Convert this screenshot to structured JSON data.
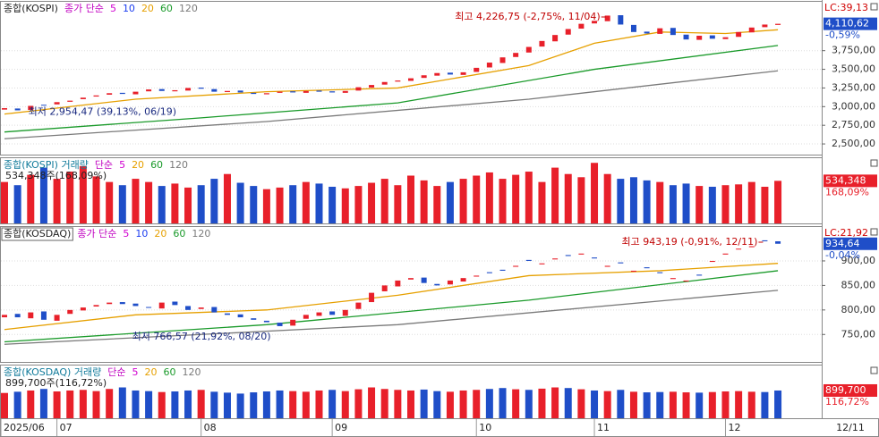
{
  "chart_data": [
    {
      "type": "candlestick",
      "title": "종합(KOSPI)",
      "indicator": "종가 단순",
      "moving_averages": [
        {
          "name": "5",
          "color": "#d000d0"
        },
        {
          "name": "10",
          "color": "#1a3cf0"
        },
        {
          "name": "20",
          "color": "#e6a000",
          "x": [
            0,
            10,
            20,
            30,
            40,
            45,
            50,
            55,
            59
          ],
          "values": [
            2900,
            3100,
            3200,
            3250,
            3550,
            3850,
            4000,
            3980,
            4030
          ]
        },
        {
          "name": "60",
          "color": "#1a9a2a",
          "x": [
            0,
            15,
            30,
            45,
            59
          ],
          "values": [
            2660,
            2850,
            3050,
            3500,
            3820
          ]
        },
        {
          "name": "120",
          "color": "#7a7a7a",
          "x": [
            0,
            20,
            40,
            59
          ],
          "values": [
            2570,
            2800,
            3100,
            3480
          ]
        }
      ],
      "up_color": "#e8202a",
      "down_color": "#1f4ec8",
      "open": [
        2960,
        2975,
        2955,
        3025,
        3030,
        3065,
        3100,
        3135,
        3160,
        3185,
        3165,
        3205,
        3235,
        3205,
        3215,
        3255,
        3235,
        3195,
        3215,
        3185,
        3165,
        3185,
        3205,
        3185,
        3215,
        3205,
        3185,
        3215,
        3255,
        3295,
        3335,
        3345,
        3385,
        3415,
        3455,
        3425,
        3465,
        3525,
        3585,
        3665,
        3725,
        3805,
        3875,
        3965,
        4045,
        4115,
        4145,
        4225,
        4095,
        4005,
        3975,
        4055,
        3965,
        3895,
        3955,
        3905,
        3935,
        3995,
        4065,
        4095
      ],
      "close": [
        2980,
        2950,
        3010,
        3020,
        3060,
        3080,
        3120,
        3150,
        3180,
        3170,
        3200,
        3230,
        3210,
        3220,
        3250,
        3240,
        3200,
        3210,
        3190,
        3170,
        3180,
        3200,
        3190,
        3210,
        3200,
        3190,
        3210,
        3260,
        3290,
        3330,
        3350,
        3380,
        3420,
        3450,
        3430,
        3460,
        3520,
        3590,
        3660,
        3720,
        3800,
        3880,
        3960,
        4040,
        4110,
        4150,
        4220,
        4100,
        4000,
        3980,
        4050,
        3960,
        3900,
        3950,
        3910,
        3930,
        4000,
        4060,
        4100,
        4110
      ],
      "ylim": [
        2357,
        4417
      ],
      "yticks": [
        {
          "value": 2500,
          "label": "2,500,00"
        },
        {
          "value": 2750,
          "label": "2,750,00"
        },
        {
          "value": 3000,
          "label": "3,000,00"
        },
        {
          "value": 3250,
          "label": "3,250,00"
        },
        {
          "value": 3500,
          "label": "3,500,00"
        },
        {
          "value": 3750,
          "label": "3,750,00"
        }
      ],
      "annotations": [
        "최고 4,226,75 (-2,75%, 11/04)",
        "최저 2,954,47 (39,13%, 06/19)"
      ],
      "lc_label": "LC:39,13",
      "last_value_label": "4,110,62",
      "last_change_label": "-0,59%"
    },
    {
      "type": "volume",
      "title": "종합(KOSPI) 거래량",
      "indicator": "단순",
      "ma_labels": [
        "5",
        "20",
        "60",
        "120"
      ],
      "summary": "534,348주(168,09%)",
      "values": [
        520000,
        480000,
        610000,
        700000,
        560000,
        650000,
        720000,
        590000,
        520000,
        480000,
        560000,
        520000,
        470000,
        500000,
        450000,
        480000,
        560000,
        620000,
        510000,
        470000,
        430000,
        450000,
        480000,
        520000,
        500000,
        460000,
        440000,
        470000,
        510000,
        560000,
        480000,
        600000,
        540000,
        470000,
        520000,
        560000,
        600000,
        640000,
        560000,
        610000,
        650000,
        520000,
        700000,
        620000,
        580000,
        760000,
        620000,
        560000,
        580000,
        540000,
        520000,
        480000,
        500000,
        470000,
        460000,
        480000,
        490000,
        520000,
        460000,
        534348
      ],
      "ylim": [
        0,
        830000
      ],
      "last_value_label": "534,348",
      "last_change_label": "168,09%"
    },
    {
      "type": "candlestick",
      "title": "종합(KOSDAQ)",
      "indicator": "종가 단순",
      "moving_averages": [
        {
          "name": "5",
          "color": "#d000d0"
        },
        {
          "name": "10",
          "color": "#1a3cf0"
        },
        {
          "name": "20",
          "color": "#e6a000",
          "x": [
            0,
            10,
            20,
            30,
            40,
            50,
            59
          ],
          "values": [
            760,
            790,
            800,
            830,
            870,
            880,
            895
          ]
        },
        {
          "name": "60",
          "color": "#1a9a2a",
          "x": [
            0,
            20,
            40,
            59
          ],
          "values": [
            735,
            770,
            820,
            880
          ]
        },
        {
          "name": "120",
          "color": "#7a7a7a",
          "x": [
            0,
            30,
            59
          ],
          "values": [
            730,
            770,
            840
          ]
        }
      ],
      "up_color": "#e8202a",
      "down_color": "#1f4ec8",
      "open": [
        785,
        792,
        783,
        797,
        778,
        792,
        799,
        807,
        812,
        816,
        813,
        806,
        803,
        817,
        808,
        802,
        806,
        793,
        791,
        783,
        778,
        774,
        768,
        782,
        788,
        797,
        788,
        802,
        816,
        838,
        848,
        862,
        866,
        853,
        852,
        858,
        868,
        877,
        882,
        888,
        902,
        893,
        903,
        912,
        913,
        907,
        888,
        897,
        878,
        887,
        877,
        863,
        858,
        872,
        898,
        913,
        924,
        928,
        942,
        940
      ],
      "close": [
        790,
        785,
        795,
        780,
        790,
        800,
        805,
        810,
        815,
        812,
        808,
        805,
        815,
        810,
        800,
        805,
        795,
        790,
        785,
        780,
        775,
        767,
        780,
        790,
        795,
        790,
        800,
        815,
        835,
        850,
        860,
        865,
        855,
        850,
        860,
        865,
        870,
        875,
        880,
        890,
        900,
        895,
        905,
        910,
        915,
        905,
        890,
        895,
        880,
        885,
        875,
        865,
        860,
        870,
        900,
        915,
        925,
        930,
        940,
        935
      ],
      "ylim": [
        694,
        971
      ],
      "yticks": [
        {
          "value": 750,
          "label": "750,00"
        },
        {
          "value": 800,
          "label": "800,00"
        },
        {
          "value": 850,
          "label": "850,00"
        },
        {
          "value": 900,
          "label": "900,00"
        }
      ],
      "annotations": [
        "최고 943,19 (-0,91%, 12/11)",
        "최저 766,57 (21,92%, 08/20)"
      ],
      "lc_label": "LC:21,92",
      "last_value_label": "934,64",
      "last_change_label": "-0,04%"
    },
    {
      "type": "volume",
      "title": "종합(KOSDAQ) 거래량",
      "indicator": "단순",
      "ma_labels": [
        "5",
        "20",
        "60",
        "120"
      ],
      "summary": "899,700주(116,72%)",
      "values": [
        820000,
        860000,
        900000,
        950000,
        870000,
        900000,
        920000,
        880000,
        950000,
        1000000,
        900000,
        880000,
        850000,
        870000,
        900000,
        920000,
        860000,
        830000,
        800000,
        840000,
        870000,
        900000,
        880000,
        860000,
        900000,
        920000,
        880000,
        940000,
        1000000,
        950000,
        920000,
        900000,
        930000,
        880000,
        860000,
        900000,
        920000,
        950000,
        980000,
        940000,
        920000,
        960000,
        1000000,
        980000,
        940000,
        900000,
        880000,
        920000,
        860000,
        840000,
        850000,
        860000,
        840000,
        830000,
        850000,
        870000,
        880000,
        860000,
        850000,
        899700
      ],
      "ylim": [
        0,
        1740000
      ],
      "last_value_label": "899,700",
      "last_change_label": "116,72%",
      "xlim": [
        0,
        62
      ],
      "xticks": [
        {
          "value": 0,
          "label": "2025/06"
        },
        {
          "value": 4,
          "label": "07"
        },
        {
          "value": 15,
          "label": "08"
        },
        {
          "value": 25,
          "label": "09"
        },
        {
          "value": 36,
          "label": "10"
        },
        {
          "value": 45,
          "label": "11"
        },
        {
          "value": 55,
          "label": "12"
        }
      ],
      "last_date_label": "12/11"
    }
  ]
}
